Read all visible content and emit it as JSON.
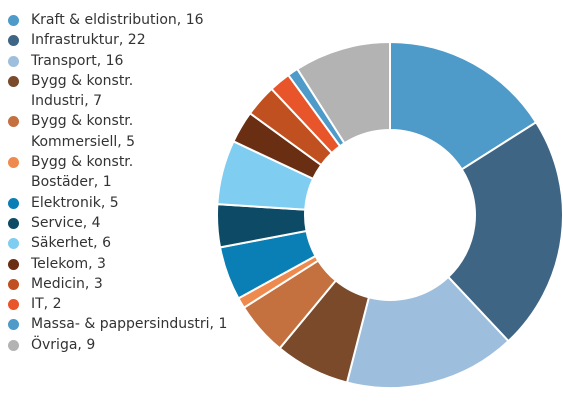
{
  "chart_data": {
    "type": "donut",
    "categories": [
      "Kraft & eldistribution, 16",
      "Infrastruktur, 22",
      "Transport, 16",
      "Bygg & konstr.\nIndustri, 7",
      "Bygg & konstr.\nKommersiell, 5",
      "Bygg & konstr.\nBostäder, 1",
      "Elektronik, 5",
      "Service, 4",
      "Säkerhet, 6",
      "Telekom, 3",
      "Medicin, 3",
      "IT, 2",
      "Massa- & pappersindustri, 1",
      "Övriga, 9"
    ],
    "values": [
      16,
      22,
      16,
      7,
      5,
      1,
      5,
      4,
      6,
      3,
      3,
      2,
      1,
      9
    ],
    "colors": [
      "#4e9ac8",
      "#3f6585",
      "#9dbfdd",
      "#7a4a2a",
      "#c4703f",
      "#ef8a4f",
      "#0a7fb5",
      "#0d4a65",
      "#7fcdf0",
      "#6a2e12",
      "#c0501f",
      "#e8552a",
      "#4e9ac8",
      "#b3b3b3"
    ]
  }
}
